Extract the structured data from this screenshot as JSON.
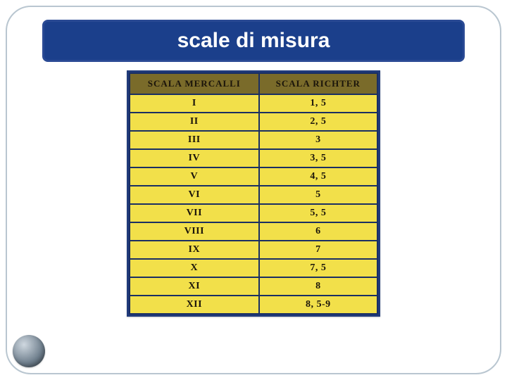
{
  "title": "scale di misura",
  "table": {
    "type": "table",
    "header_bg": "#7a6b2a",
    "cell_bg": "#f2e04a",
    "border_color": "#1a2f63",
    "frame_color": "#203a7a",
    "text_color": "#1a140a",
    "font_family": "Copperplate",
    "header_fontsize": 13,
    "cell_fontsize": 14,
    "columns": [
      "Scala mercalli",
      "scala richter"
    ],
    "rows": [
      [
        "I",
        "1, 5"
      ],
      [
        "II",
        "2, 5"
      ],
      [
        "III",
        "3"
      ],
      [
        "IV",
        "3, 5"
      ],
      [
        "V",
        "4, 5"
      ],
      [
        "VI",
        "5"
      ],
      [
        "VII",
        "5, 5"
      ],
      [
        "VIII",
        "6"
      ],
      [
        "IX",
        "7"
      ],
      [
        "X",
        "7, 5"
      ],
      [
        "XI",
        "8"
      ],
      [
        "XII",
        "8, 5-9"
      ]
    ]
  },
  "slide": {
    "bg": "#ffffff",
    "frame_border": "#b9c6d0",
    "title_bg": "#1b3f8b",
    "title_color": "#ffffff",
    "title_fontsize": 30
  }
}
